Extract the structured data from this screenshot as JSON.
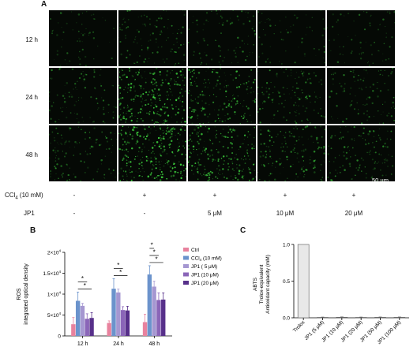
{
  "panels": {
    "a": "A",
    "b": "B",
    "c": "C"
  },
  "micrographs": {
    "rows": [
      "12 h",
      "24 h",
      "48 h"
    ],
    "columns": 5,
    "density": [
      [
        0.08,
        0.28,
        0.2,
        0.1,
        0.12
      ],
      [
        0.22,
        0.85,
        0.55,
        0.35,
        0.25
      ],
      [
        0.3,
        0.95,
        0.7,
        0.45,
        0.35
      ]
    ],
    "scale_bar": "50 μm",
    "colors": {
      "background": "#050905",
      "signal": "#3ccc3c"
    }
  },
  "treatment": {
    "ccl4_label": "CCl",
    "ccl4_sub": "4",
    "ccl4_conc": "(10 mM)",
    "ccl4_values": [
      "-",
      "+",
      "+",
      "+",
      "+"
    ],
    "jp1_label": "JP1",
    "jp1_values": [
      "-",
      "-",
      "5 μM",
      "10 μM",
      "20 μM"
    ]
  },
  "chart_data": [
    {
      "id": "B",
      "type": "bar",
      "ylabel_line1": "ROS",
      "ylabel_line2": "integrated optical density",
      "categories": [
        "12 h",
        "24 h",
        "48 h"
      ],
      "ylim": [
        0,
        20000
      ],
      "yticks": [
        {
          "value": 0,
          "label": "0"
        },
        {
          "value": 5000,
          "label": "5×10"
        },
        {
          "value": 10000,
          "label": "1×10"
        },
        {
          "value": 15000,
          "label": "1.5×10"
        },
        {
          "value": 20000,
          "label": "2×10"
        }
      ],
      "ytick_exponent": "4",
      "ytick_exponent_from": 1,
      "legend_position": "right",
      "series": [
        {
          "name": "Ctrl",
          "color": "#e8829e",
          "values": [
            2800,
            3100,
            3300
          ],
          "errors": [
            1600,
            500,
            1900
          ]
        },
        {
          "name": "CCl4 (10 mM)",
          "color": "#6b93cc",
          "values": [
            8400,
            11300,
            14700
          ],
          "errors": [
            2100,
            2400,
            2100
          ]
        },
        {
          "name": "JP1 ( 5 μM)",
          "color": "#a597d1",
          "values": [
            7200,
            10400,
            11800
          ],
          "errors": [
            600,
            800,
            1300
          ]
        },
        {
          "name": "JP1 (10 μM)",
          "color": "#8a65b8",
          "values": [
            4100,
            6200,
            8600
          ],
          "errors": [
            1200,
            800,
            1700
          ]
        },
        {
          "name": "JP1 (20 μM)",
          "color": "#57308a",
          "values": [
            4300,
            6100,
            8700
          ],
          "errors": [
            1300,
            1000,
            1600
          ]
        }
      ],
      "significance": [
        {
          "group": 0,
          "from": 1,
          "to": 3,
          "label": "*"
        },
        {
          "group": 0,
          "from": 1,
          "to": 4,
          "label": "*"
        },
        {
          "group": 1,
          "from": 1,
          "to": 3,
          "label": "*"
        },
        {
          "group": 1,
          "from": 1,
          "to": 4,
          "label": "*"
        },
        {
          "group": 2,
          "from": 1,
          "to": 2,
          "label": "*"
        },
        {
          "group": 2,
          "from": 1,
          "to": 3,
          "label": "*"
        },
        {
          "group": 2,
          "from": 1,
          "to": 4,
          "label": "*"
        }
      ]
    },
    {
      "id": "C",
      "type": "bar",
      "ylabel_line1": "ABTS",
      "ylabel_line2": "Trolox-equivalent",
      "ylabel_line3": "Antioxidant capacity (mM)",
      "categories": [
        "Trolox",
        "JP1 (5 μM)",
        "JP1 (10 μM)",
        "JP1 (20 μM)",
        "JP1 (50 μM)",
        "JP1 (100 μM)"
      ],
      "values": [
        1.0,
        0.005,
        0.007,
        0.005,
        0.006,
        0.006
      ],
      "ylim": [
        0,
        1.0
      ],
      "yticks": [
        {
          "value": 0,
          "label": "0.0"
        },
        {
          "value": 0.5,
          "label": "0.5"
        },
        {
          "value": 1.0,
          "label": "1.0"
        }
      ],
      "color": "#e8e8e8"
    }
  ]
}
